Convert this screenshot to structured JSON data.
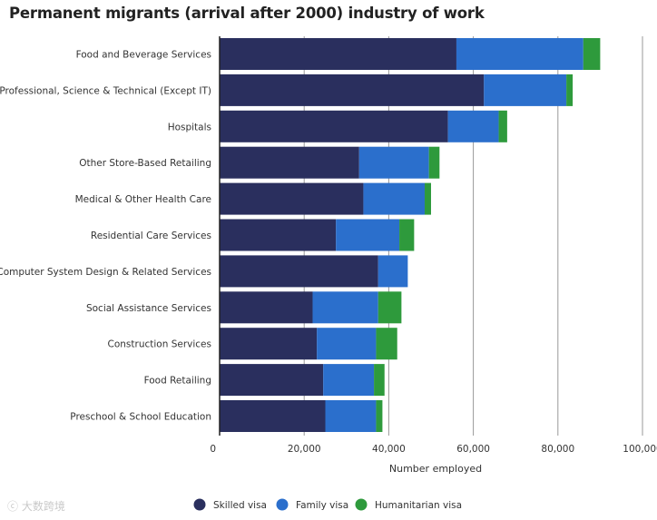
{
  "chart_data": {
    "type": "bar",
    "orientation": "horizontal",
    "stacked": true,
    "title": "Permanent migrants (arrival after 2000) industry of work",
    "xlabel": "Number employed",
    "ylabel": "",
    "xlim": [
      0,
      100000
    ],
    "xticks": [
      0,
      20000,
      40000,
      60000,
      80000,
      100000
    ],
    "xtick_labels": [
      "0",
      "20,000",
      "40,000",
      "60,000",
      "80,000",
      "100,000"
    ],
    "grid": true,
    "legend_position": "bottom-center",
    "categories": [
      "Food and Beverage Services",
      "Professional, Science & Technical (Except IT)",
      "Hospitals",
      "Other Store-Based Retailing",
      "Medical & Other Health Care",
      "Residential Care Services",
      "Computer System Design & Related Services",
      "Social Assistance Services",
      "Construction Services",
      "Food Retailing",
      "Preschool & School Education"
    ],
    "series": [
      {
        "name": "Skilled visa",
        "color": "#2a2f5e",
        "values": [
          56000,
          62500,
          54000,
          33000,
          34000,
          27500,
          37500,
          22000,
          23000,
          24500,
          25000
        ]
      },
      {
        "name": "Family visa",
        "color": "#2b6fcc",
        "values": [
          30000,
          19500,
          12000,
          16500,
          14500,
          15000,
          7000,
          15500,
          14000,
          12000,
          12000
        ]
      },
      {
        "name": "Humanitarian visa",
        "color": "#2e9a3c",
        "values": [
          4000,
          1500,
          2000,
          2500,
          1500,
          3500,
          0,
          5500,
          5000,
          2500,
          1500
        ]
      }
    ]
  },
  "watermark": "大数跨境"
}
